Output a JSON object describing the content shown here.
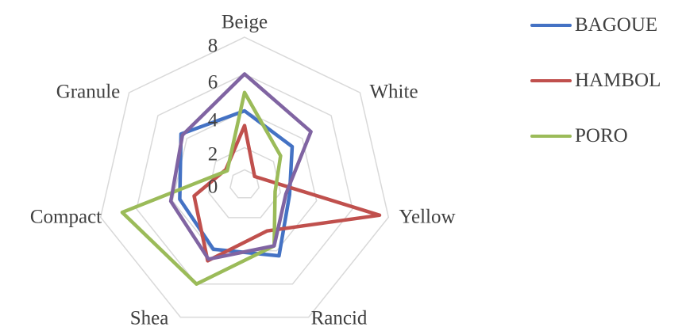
{
  "chart_data": {
    "type": "radar",
    "categories": [
      "Beige",
      "White",
      "Yellow",
      "Rancid",
      "Shea",
      "Compact",
      "Granule"
    ],
    "rlim": [
      0,
      8
    ],
    "ticks": [
      "0",
      "2",
      "4",
      "6",
      "8"
    ],
    "grid": true,
    "legend_position": "top-right",
    "series": [
      {
        "name": "BAGOUE",
        "color": "#4472C4",
        "values": [
          4.0,
          3.3,
          2.5,
          4.3,
          3.9,
          3.6,
          4.4
        ]
      },
      {
        "name": "HAMBOL",
        "color": "#C0504D",
        "values": [
          3.2,
          0.7,
          7.5,
          2.8,
          4.6,
          2.8,
          1.3
        ]
      },
      {
        "name": "PORO",
        "color": "#9BBB59",
        "values": [
          5.0,
          2.5,
          1.7,
          3.7,
          6.0,
          6.8,
          1.2
        ]
      },
      {
        "color": "#8064A2",
        "values": [
          6.0,
          4.6,
          2.3,
          3.7,
          4.5,
          4.1,
          4.3
        ]
      }
    ]
  }
}
